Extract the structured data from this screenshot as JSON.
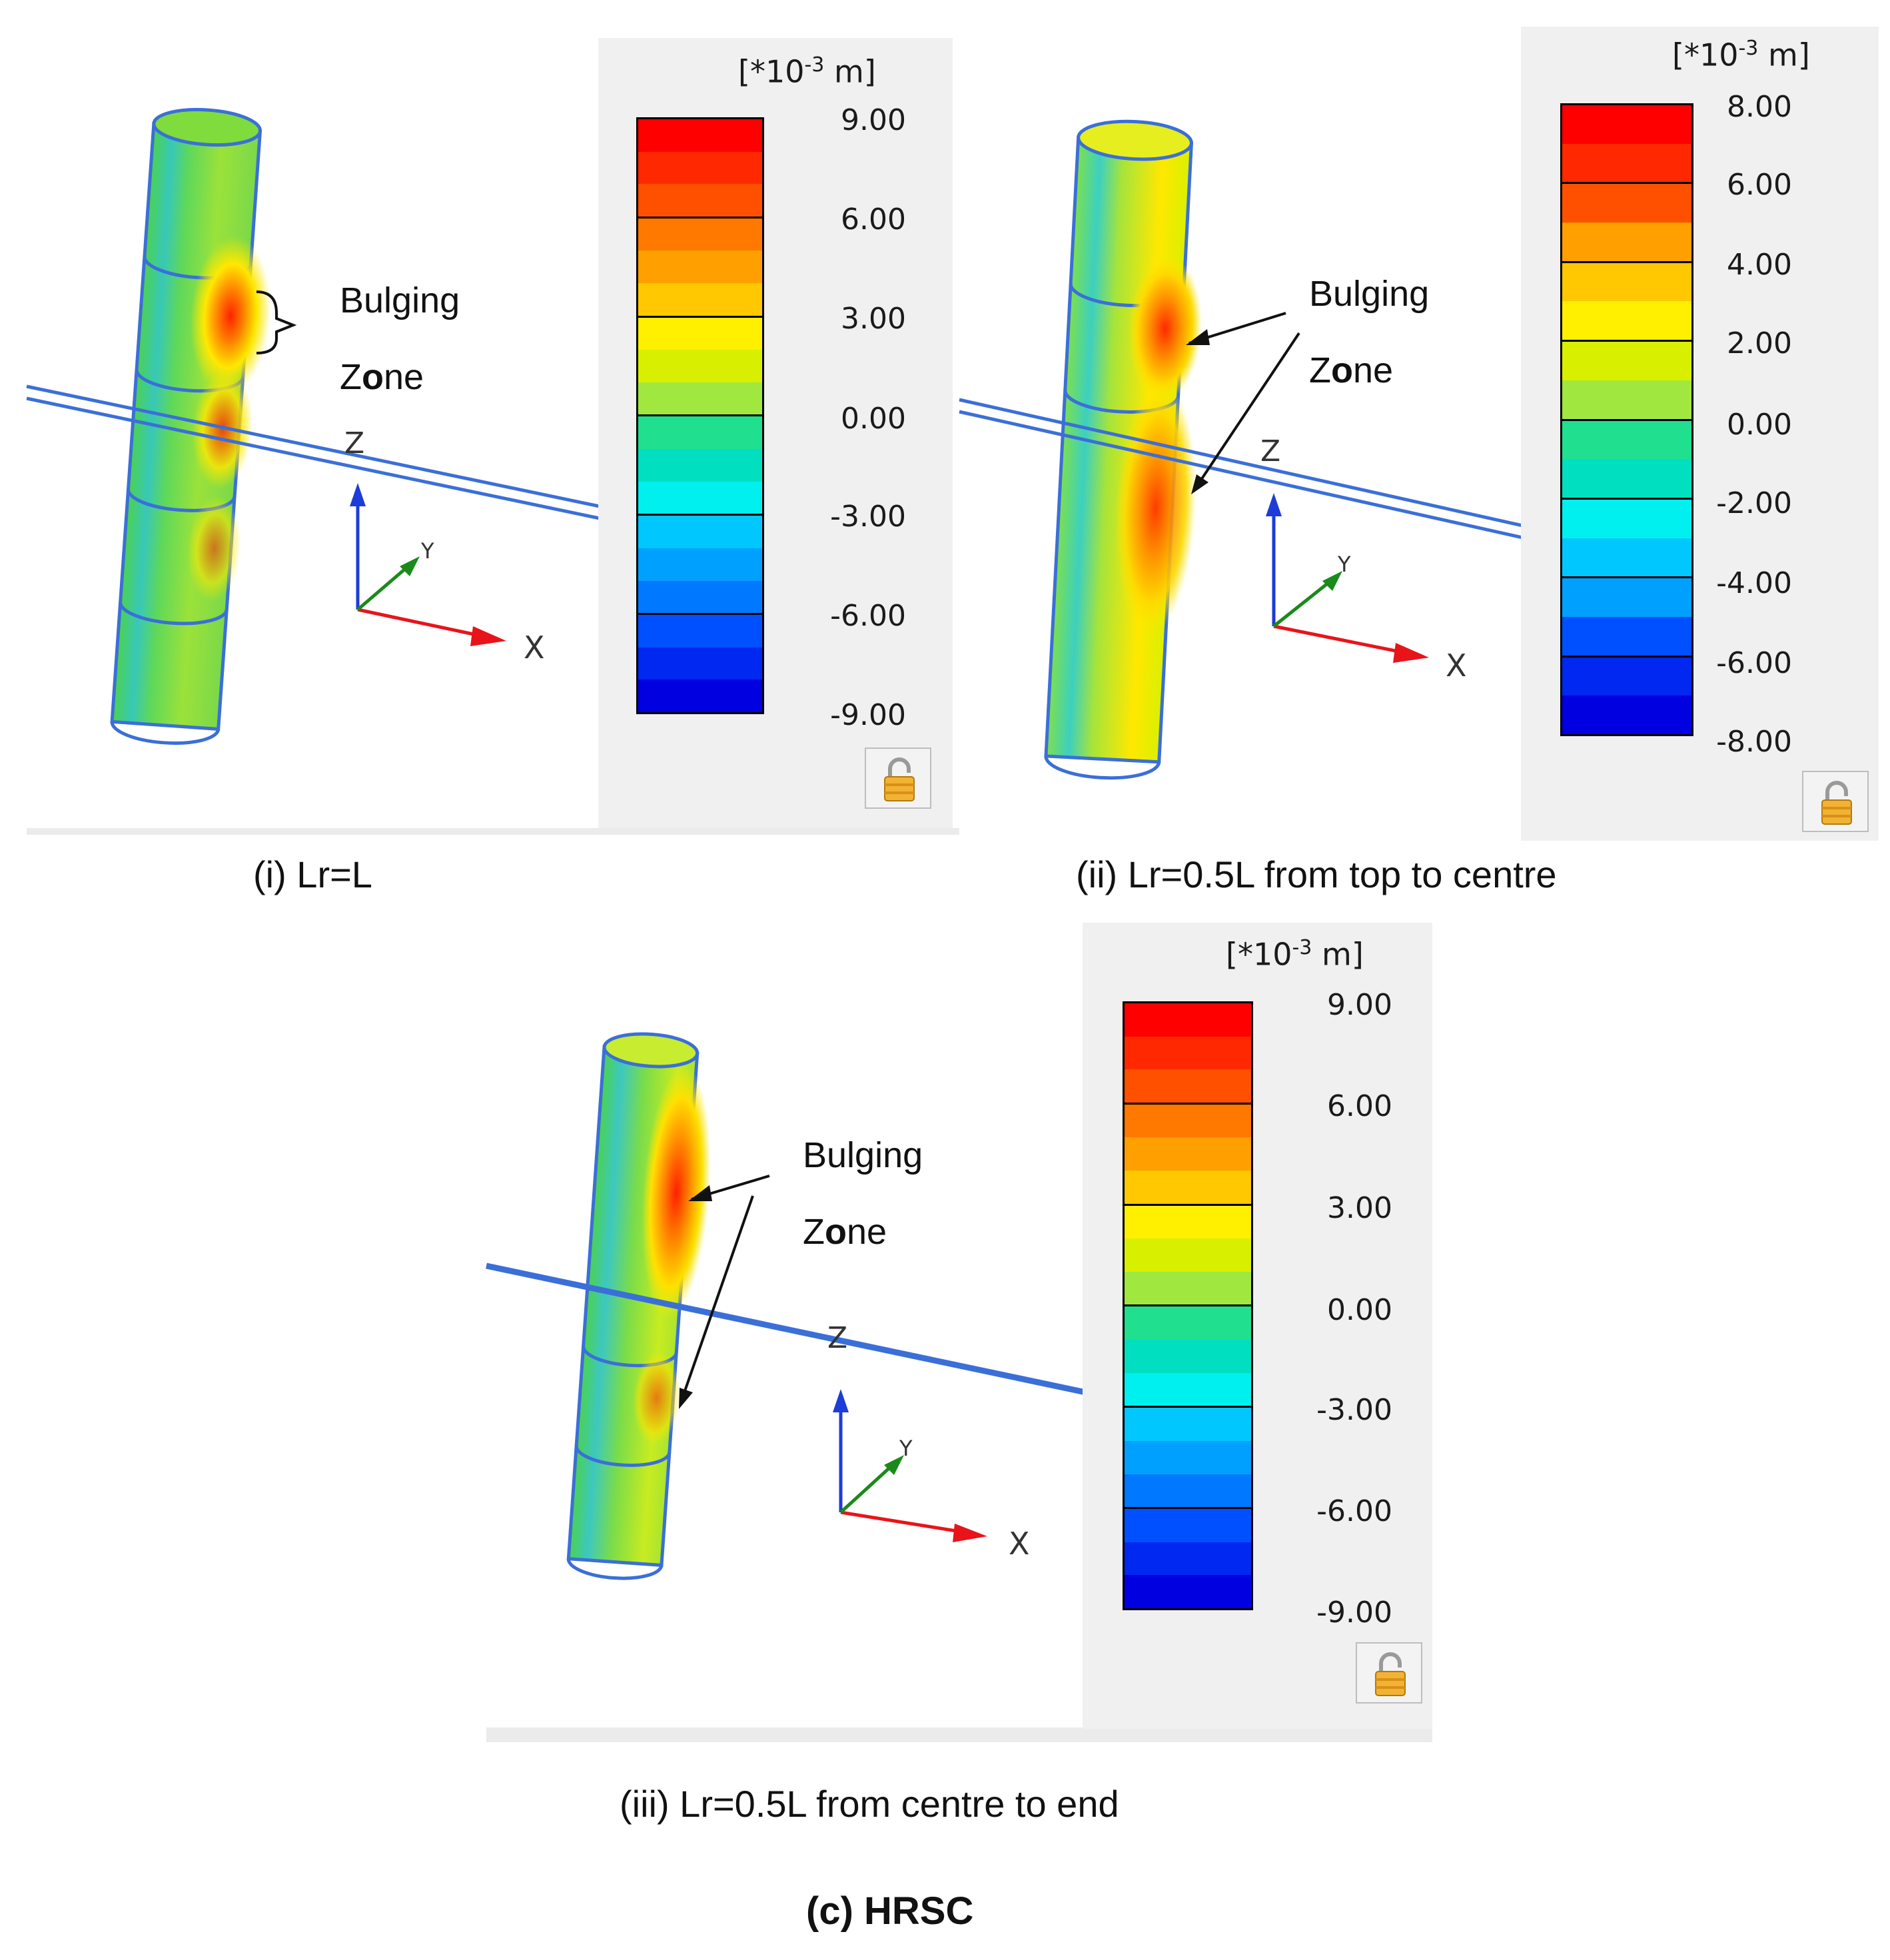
{
  "panels": [
    {
      "caption": "(i) Lr=L",
      "unit": {
        "prefix": "[*10",
        "exponent": "-3",
        "suffix": " m]"
      },
      "ticks": [
        "9.00",
        "6.00",
        "3.00",
        "0.00",
        "-3.00",
        "-6.00",
        "-9.00"
      ],
      "annotation": {
        "line1": "Bulging",
        "line2_a": "Z",
        "line2_b": "o",
        "line2_c": "ne"
      },
      "axes": {
        "x": "X",
        "y": "Y",
        "z": "Z"
      },
      "lock_icon": "padlock-icon"
    },
    {
      "caption": "(ii) Lr=0.5L from top to centre",
      "unit": {
        "prefix": "[*10",
        "exponent": "-3",
        "suffix": " m]"
      },
      "ticks": [
        "8.00",
        "6.00",
        "4.00",
        "2.00",
        "0.00",
        "-2.00",
        "-4.00",
        "-6.00",
        "-8.00"
      ],
      "annotation": {
        "line1": "Bulging",
        "line2_a": "Z",
        "line2_b": "o",
        "line2_c": "ne"
      },
      "axes": {
        "x": "X",
        "y": "Y",
        "z": "Z"
      },
      "lock_icon": "padlock-icon"
    },
    {
      "caption": "(iii) Lr=0.5L from centre to end",
      "unit": {
        "prefix": "[*10",
        "exponent": "-3",
        "suffix": " m]"
      },
      "ticks": [
        "9.00",
        "6.00",
        "3.00",
        "0.00",
        "-3.00",
        "-6.00",
        "-9.00"
      ],
      "annotation": {
        "line1": "Bulging",
        "line2_a": "Z",
        "line2_b": "o",
        "line2_c": "ne"
      },
      "axes": {
        "x": "X",
        "y": "Y",
        "z": "Z"
      },
      "lock_icon": "padlock-icon"
    }
  ],
  "figure_title": "(c)  HRSC",
  "colormap": [
    "#ff0000",
    "#ff2800",
    "#ff5000",
    "#ff7800",
    "#ffa000",
    "#ffc800",
    "#fff000",
    "#d8f000",
    "#a0e840",
    "#50e050",
    "#20e090",
    "#00e0c0",
    "#00f0f0",
    "#00c8ff",
    "#00a0ff",
    "#0078ff",
    "#0050ff",
    "#0028f0",
    "#0000e0"
  ],
  "colors": {
    "axis_x": "#e8141a",
    "axis_y": "#1a8a1a",
    "axis_z": "#1e3cd8",
    "edge": "#3b6fd8"
  }
}
